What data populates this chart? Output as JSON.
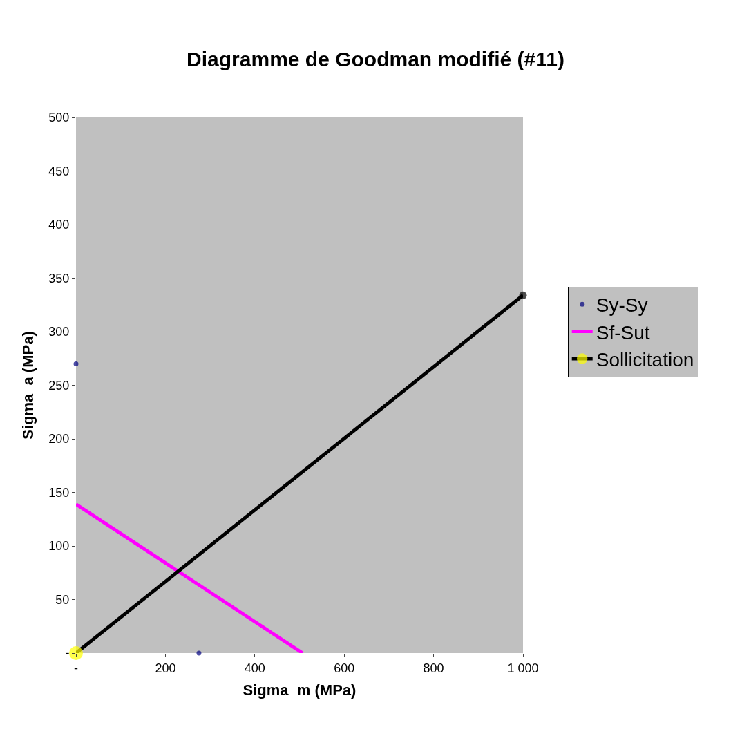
{
  "chart_data": {
    "type": "line",
    "title": "Diagramme de Goodman modifié (#11)",
    "xlabel": "Sigma_m (MPa)",
    "ylabel": "Sigma_a (MPa)",
    "series": [
      {
        "name": "Sy-Sy",
        "type": "scatter",
        "marker": "circle",
        "color": "#000080",
        "x": [
          0,
          275
        ],
        "values": [
          270,
          0
        ]
      },
      {
        "name": "Sf-Sut",
        "color": "#ff00ff",
        "x": [
          0,
          507
        ],
        "values": [
          139,
          0
        ]
      },
      {
        "name": "Sollicitation",
        "marker": "circle",
        "color": "#000000",
        "colors": [
          "#ffff00",
          "#000000"
        ],
        "x": [
          0,
          1000
        ],
        "values": [
          0,
          334
        ]
      }
    ],
    "xlim": [
      0,
      1000
    ],
    "xticks": [
      {
        "value": 0,
        "label": "-"
      },
      200,
      400,
      600,
      800,
      {
        "value": 1000,
        "label": "1 000"
      }
    ],
    "ylim": [
      0,
      500
    ],
    "yticks": [
      {
        "value": 0,
        "label": "-"
      },
      50,
      100,
      150,
      200,
      250,
      300,
      350,
      400,
      450,
      500
    ],
    "grid": false,
    "legend": "right"
  }
}
